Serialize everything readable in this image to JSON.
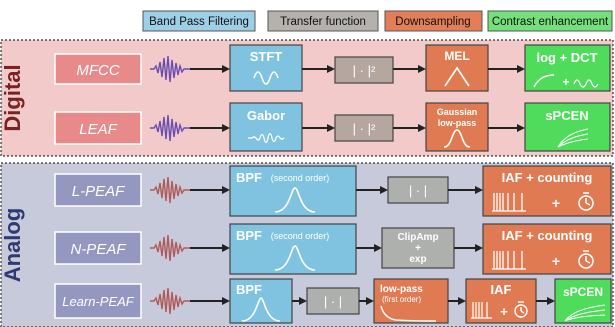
{
  "legend": {
    "items": [
      {
        "label": "Band Pass Filtering",
        "color": "#9dd0e6"
      },
      {
        "label": "Transfer function",
        "color": "#b5b2ad"
      },
      {
        "label": "Downsampling",
        "color": "#e37e58"
      },
      {
        "label": "Contrast enhancement",
        "color": "#74e07a"
      }
    ]
  },
  "colors": {
    "digital_bg": "#f2caca",
    "analog_bg": "#c7cadb",
    "bpf": "#7fc3e1",
    "transfer": "#b5a79f",
    "transfer_analog": "#aeb0ae",
    "down": "#e07a52",
    "contrast": "#4fdc5a",
    "label_box_digital": "#e98a8a",
    "label_box_analog": "#9498c0",
    "digital_title": "#7a2222",
    "analog_title": "#2f3a73",
    "wave_digital": "#6b4db0",
    "wave_analog": "#b05a5a"
  },
  "sections": {
    "digital": {
      "title": "Digital",
      "rows": [
        {
          "name": "MFCC",
          "bpf": "STFT",
          "transfer": "| · |²",
          "down": "MEL",
          "contrast": "log + DCT"
        },
        {
          "name": "LEAF",
          "bpf": "Gabor",
          "transfer": "| · |²",
          "down_line1": "Gaussian",
          "down_line2": "low-pass",
          "contrast": "sPCEN"
        }
      ]
    },
    "analog": {
      "title": "Analog",
      "rows": [
        {
          "name": "L-PEAF",
          "bpf": "BPF",
          "bpf_note": "(second order)",
          "transfer": "| · |",
          "down": "IAF + counting",
          "down_plus": "+"
        },
        {
          "name": "N-PEAF",
          "bpf": "BPF",
          "bpf_note": "(second order)",
          "transfer_line1": "ClipAmp",
          "transfer_line2": "+",
          "transfer_line3": "exp",
          "down": "IAF + counting",
          "down_plus": "+"
        },
        {
          "name": "Learn-PEAF",
          "bpf": "BPF",
          "transfer": "| · |",
          "lowpass": "low-pass",
          "lowpass_note": "(first order)",
          "down": "IAF",
          "down_plus": "+",
          "contrast": "sPCEN"
        }
      ]
    }
  }
}
